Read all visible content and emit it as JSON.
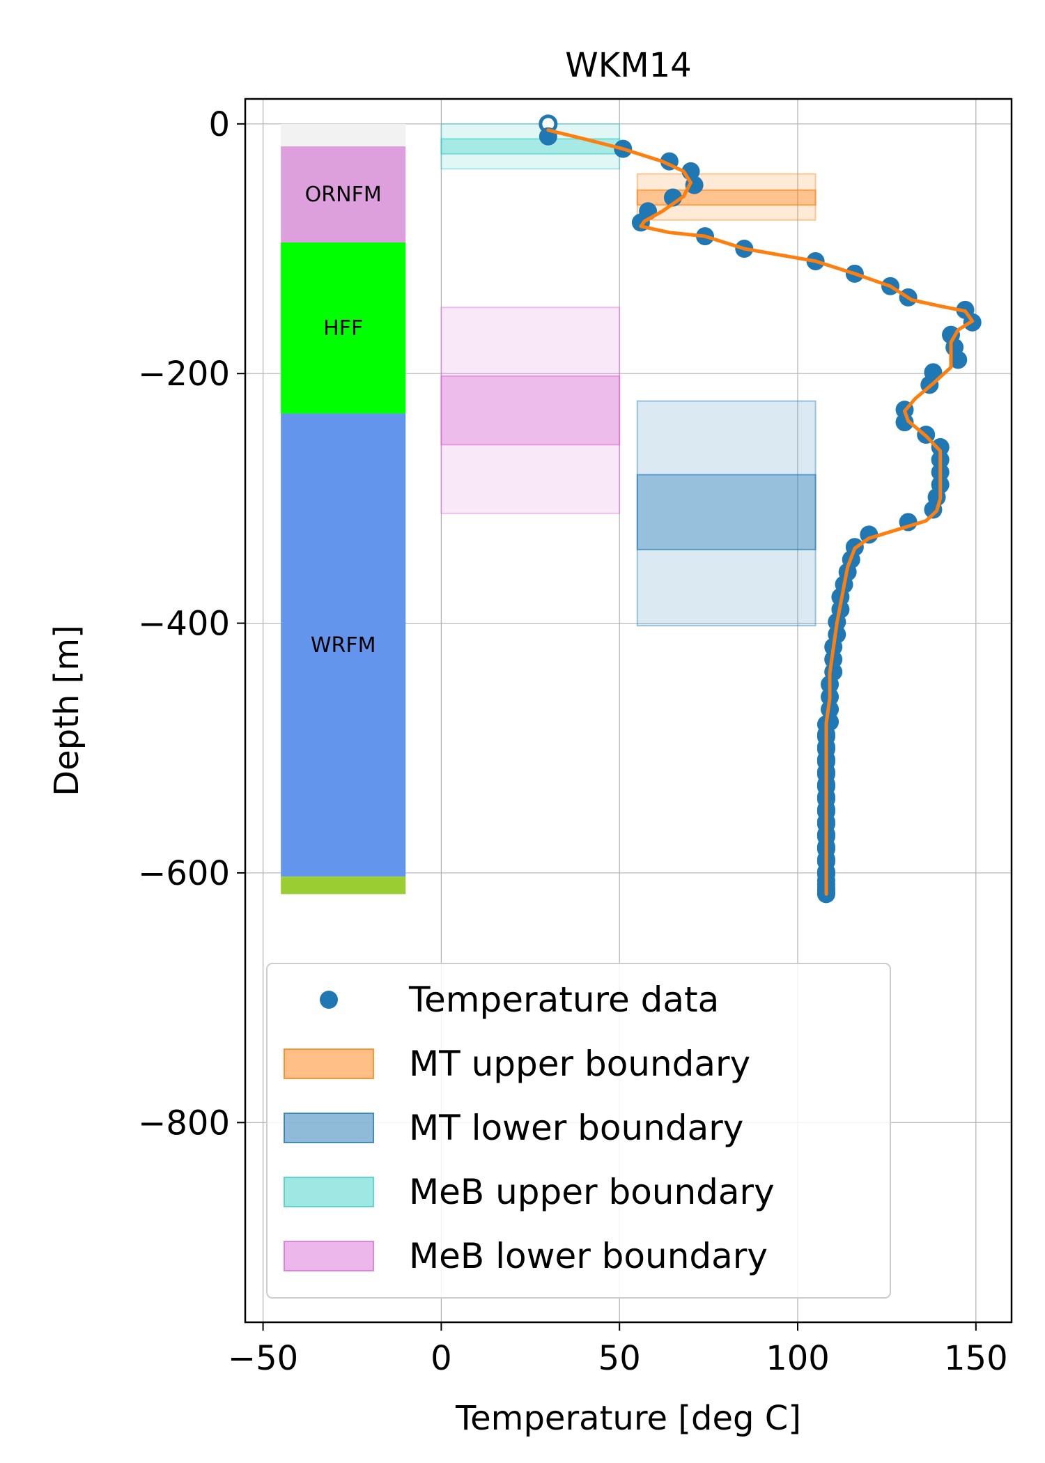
{
  "chart_data": {
    "type": "scatter",
    "title": "WKM14",
    "xlabel": "Temperature [deg C]",
    "ylabel": "Depth [m]",
    "xlim": [
      -55,
      160
    ],
    "ylim": [
      -960,
      20
    ],
    "grid": true,
    "legend_position": "bottom-left",
    "x_ticks": [
      -50,
      0,
      50,
      100,
      150
    ],
    "x_tick_labels": [
      "−50",
      "0",
      "50",
      "100",
      "150"
    ],
    "y_ticks": [
      0,
      -200,
      -400,
      -600,
      -800
    ],
    "y_tick_labels": [
      "0",
      "−200",
      "−400",
      "−600",
      "−800"
    ],
    "lithology": [
      {
        "name": "",
        "top": 0,
        "bottom": -18,
        "color": "#f2f2f2"
      },
      {
        "name": "ORNFM",
        "top": -18,
        "bottom": -95,
        "color": "#dda0dd"
      },
      {
        "name": "HFF",
        "top": -95,
        "bottom": -232,
        "color": "#00ff00"
      },
      {
        "name": "WRFM",
        "top": -232,
        "bottom": -603,
        "color": "#6495ed"
      },
      {
        "name": "",
        "top": -603,
        "bottom": -617,
        "color": "#9acd32"
      }
    ],
    "lithology_x": [
      -45,
      -10
    ],
    "boundaries": [
      {
        "name": "MT upper boundary",
        "color": "#ff7f0e",
        "x": [
          55,
          105
        ],
        "outer": [
          -40,
          -77
        ],
        "inner": [
          -53,
          -65
        ]
      },
      {
        "name": "MT lower boundary",
        "color": "#1f77b4",
        "x": [
          55,
          105
        ],
        "outer": [
          -222,
          -402
        ],
        "inner": [
          -281,
          -341
        ]
      },
      {
        "name": "MeB upper boundary",
        "color": "#40d0c8",
        "x": [
          0,
          50
        ],
        "outer": [
          0,
          -36
        ],
        "inner": [
          -12,
          -24
        ]
      },
      {
        "name": "MeB lower boundary",
        "color": "#da70d6",
        "x": [
          0,
          50
        ],
        "outer": [
          -147,
          -312
        ],
        "inner": [
          -202,
          -257
        ]
      }
    ],
    "series": [
      {
        "name": "Temperature data",
        "color": "#1f77b4",
        "x": [
          30,
          30,
          51,
          64,
          70,
          71,
          65,
          58,
          56,
          74,
          85,
          105,
          116,
          126,
          131,
          147,
          149,
          143,
          144,
          145,
          138,
          137,
          130,
          130,
          136,
          140,
          140,
          140,
          140,
          139,
          138,
          131,
          120,
          116,
          115,
          114,
          113,
          112,
          112,
          111,
          111,
          110,
          110,
          110,
          109,
          109,
          109,
          109,
          108,
          108,
          108,
          108,
          108,
          108,
          108,
          108,
          108,
          108,
          108,
          108,
          108,
          108,
          108,
          108,
          108,
          108,
          108,
          108,
          108,
          108,
          108,
          108,
          108,
          108,
          108,
          108,
          108,
          108,
          108
        ],
        "y": [
          0,
          -10,
          -20,
          -30,
          -38,
          -49,
          -59,
          -70,
          -79,
          -90,
          -100,
          -110,
          -120,
          -130,
          -139,
          -149,
          -159,
          -169,
          -179,
          -189,
          -199,
          -209,
          -229,
          -239,
          -249,
          -259,
          -269,
          -279,
          -289,
          -299,
          -309,
          -319,
          -329,
          -339,
          -349,
          -359,
          -369,
          -379,
          -389,
          -399,
          -409,
          -419,
          -429,
          -439,
          -449,
          -459,
          -469,
          -479,
          -489,
          -499,
          -509,
          -519,
          -529,
          -539,
          -549,
          -559,
          -569,
          -579,
          -589,
          -599,
          -606,
          -609,
          -612,
          -614,
          -616,
          -617,
          -601,
          -591,
          -581,
          -571,
          -561,
          -551,
          -541,
          -531,
          -521,
          -511,
          -501,
          -491,
          -481
        ]
      },
      {
        "name": "",
        "color": "#ff7f0e",
        "x": [
          30,
          40,
          51,
          62,
          68,
          70,
          68,
          62,
          57,
          56,
          64,
          74,
          85,
          105,
          116,
          126,
          132,
          140,
          147,
          149,
          145,
          143,
          143,
          143,
          138,
          133,
          130,
          131,
          136,
          140,
          140,
          140,
          140,
          139,
          136,
          128,
          120,
          116,
          114,
          113,
          112,
          111,
          110,
          109,
          109,
          108,
          108,
          108,
          108,
          108
        ],
        "y": [
          -5,
          -12,
          -20,
          -30,
          -38,
          -47,
          -58,
          -70,
          -78,
          -82,
          -87,
          -90,
          -100,
          -110,
          -120,
          -130,
          -141,
          -146,
          -150,
          -158,
          -165,
          -175,
          -185,
          -195,
          -208,
          -220,
          -230,
          -238,
          -250,
          -262,
          -275,
          -288,
          -300,
          -310,
          -318,
          -325,
          -332,
          -340,
          -355,
          -370,
          -385,
          -400,
          -420,
          -440,
          -460,
          -480,
          -500,
          -540,
          -580,
          -617
        ]
      }
    ]
  }
}
